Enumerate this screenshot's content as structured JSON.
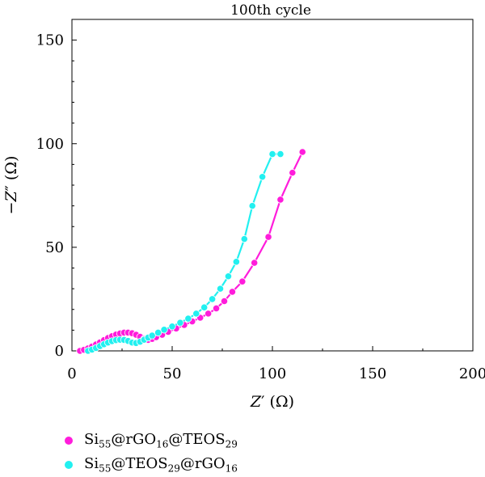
{
  "chart_data": {
    "type": "line",
    "title": "100th cycle",
    "xlabel": "Z′ (Ω)",
    "ylabel": "−Z″ (Ω)",
    "xlim": [
      0,
      200
    ],
    "ylim": [
      0,
      160
    ],
    "xticks": [
      0,
      50,
      100,
      150,
      200
    ],
    "yticks": [
      0,
      50,
      100,
      150
    ],
    "grid": false,
    "legend_placement": "bottom-left",
    "series": [
      {
        "name": "Si55@rGO16@TEOS29",
        "color": "#ff1cdb",
        "x": [
          4,
          6,
          8,
          10,
          12,
          14,
          16,
          18,
          20,
          22,
          24,
          26,
          28,
          30,
          32,
          34,
          36,
          38,
          40,
          42,
          45,
          48,
          52,
          56,
          60,
          64,
          68,
          72,
          76,
          80,
          85,
          90,
          95,
          100,
          105,
          110,
          115
        ],
        "y": [
          0,
          0.5,
          1.2,
          2.1,
          3.1,
          4.1,
          5.2,
          6.2,
          7.1,
          7.9,
          8.4,
          8.8,
          8.8,
          8.5,
          7.8,
          6.8,
          5.8,
          5.3,
          5.8,
          6.6,
          7.8,
          9.2,
          10.8,
          12.5,
          14.2,
          16.0,
          18.0,
          20.5,
          24.0,
          28.5,
          34.0,
          42.0,
          55.0,
          73.0,
          86.0,
          96.0,
          96.0
        ],
        "x_clean": [
          4,
          6,
          8,
          10,
          12,
          14,
          16,
          18,
          20,
          22,
          24,
          26,
          28,
          30,
          32,
          34,
          36,
          38,
          40,
          42,
          45,
          48,
          52,
          56,
          60,
          64,
          68,
          72,
          76,
          80,
          85,
          91,
          98,
          104,
          110,
          115
        ],
        "y_clean": [
          0,
          0.5,
          1.2,
          2.1,
          3.1,
          4.1,
          5.2,
          6.2,
          7.1,
          7.9,
          8.4,
          8.8,
          8.8,
          8.5,
          7.8,
          6.8,
          5.8,
          5.3,
          5.8,
          6.6,
          7.8,
          9.2,
          10.8,
          12.5,
          14.2,
          16.0,
          18.0,
          20.5,
          24.0,
          28.5,
          33.5,
          42.5,
          55.0,
          73.0,
          86.0,
          96.0
        ]
      },
      {
        "name": "Si55@TEOS29@rGO16",
        "color": "#22f0f0",
        "x_clean": [
          8,
          10,
          12,
          14,
          16,
          18,
          20,
          22,
          24,
          26,
          28,
          30,
          32,
          34,
          36,
          38,
          40,
          43,
          46,
          50,
          54,
          58,
          62,
          66,
          70,
          74,
          78,
          82,
          86,
          90,
          95,
          100,
          104
        ],
        "y_clean": [
          0,
          0.6,
          1.4,
          2.3,
          3.2,
          4.0,
          4.7,
          5.2,
          5.4,
          5.3,
          4.8,
          4.0,
          3.8,
          4.4,
          5.4,
          6.4,
          7.4,
          8.8,
          10.2,
          11.8,
          13.6,
          15.6,
          18.0,
          21.0,
          25.0,
          30.0,
          36.0,
          43.0,
          54.0,
          70.0,
          84.0,
          95.0,
          95.0
        ]
      }
    ]
  },
  "legend": {
    "item1": {
      "base": "Si",
      "s1": "55",
      "mid1": "@rGO",
      "s2": "16",
      "mid2": "@TEOS",
      "s3": "29"
    },
    "item2": {
      "base": "Si",
      "s1": "55",
      "mid1": "@TEOS",
      "s2": "29",
      "mid2": "@rGO",
      "s3": "16"
    }
  }
}
